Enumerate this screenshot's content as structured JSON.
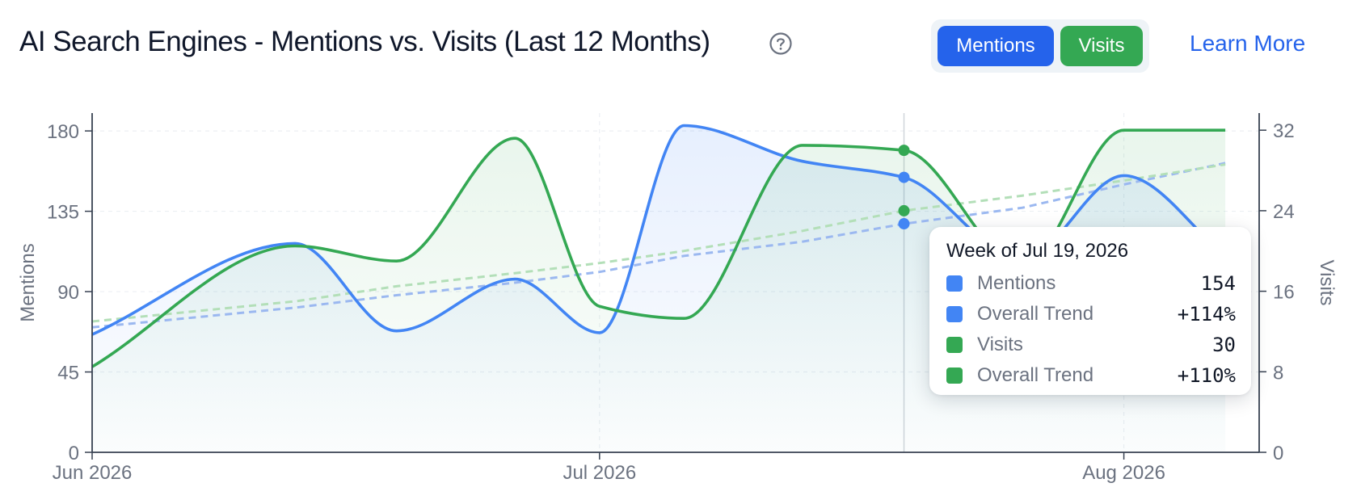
{
  "header": {
    "title": "AI Search Engines - Mentions vs. Visits (Last 12 Months)",
    "help_icon": "question-circle-icon",
    "toggle": {
      "mentions_label": "Mentions",
      "visits_label": "Visits"
    },
    "learn_more": "Learn More"
  },
  "colors": {
    "mentions": "#4285f4",
    "visits": "#34a853",
    "mentions_trend": "#9bb8f0",
    "visits_trend": "#b3dfb8",
    "axis": "#374151",
    "tick_text": "#6b7280",
    "grid": "#eceff3"
  },
  "chart_data": {
    "type": "line",
    "x_ticks": [
      "Jun 2026",
      "Jul 2026",
      "Aug 2026"
    ],
    "x": [
      "2026-06-01",
      "2026-06-13",
      "2026-06-19",
      "2026-06-26",
      "2026-07-01",
      "2026-07-06",
      "2026-07-13",
      "2026-07-19",
      "2026-07-26",
      "2026-08-01",
      "2026-08-07"
    ],
    "series": [
      {
        "name": "Mentions",
        "axis": "left",
        "values": [
          66,
          117,
          68,
          97,
          67,
          183,
          163,
          154,
          108,
          155,
          110
        ],
        "trend": [
          70,
          81,
          88,
          95,
          101,
          110,
          118,
          128,
          137,
          150,
          162
        ],
        "trend_label": "Overall Trend",
        "trend_change": "+114%"
      },
      {
        "name": "Visits",
        "axis": "right",
        "values": [
          8.5,
          20.5,
          19,
          31.2,
          14.5,
          13.3,
          30.5,
          30,
          18.5,
          32,
          32
        ],
        "trend": [
          13,
          15,
          16.5,
          17.8,
          18.8,
          20,
          22,
          24,
          25.5,
          27,
          28.6
        ],
        "trend_label": "Overall Trend",
        "trend_change": "+110%"
      }
    ],
    "left_axis": {
      "label": "Mentions",
      "ticks": [
        0,
        45,
        90,
        135,
        180
      ],
      "range": [
        0,
        190
      ]
    },
    "right_axis": {
      "label": "Visits",
      "ticks": [
        0,
        8,
        16,
        24,
        32
      ],
      "range": [
        0,
        33.7
      ]
    },
    "grid": true,
    "legend": "none",
    "tooltip": {
      "title": "Week of Jul 19, 2026",
      "index": 7,
      "rows": [
        {
          "label": "Mentions",
          "value": "154",
          "color": "#4285f4"
        },
        {
          "label": "Overall Trend",
          "value": "+114%",
          "color": "#4285f4"
        },
        {
          "label": "Visits",
          "value": "30",
          "color": "#34a853"
        },
        {
          "label": "Overall Trend",
          "value": "+110%",
          "color": "#34a853"
        }
      ]
    }
  }
}
